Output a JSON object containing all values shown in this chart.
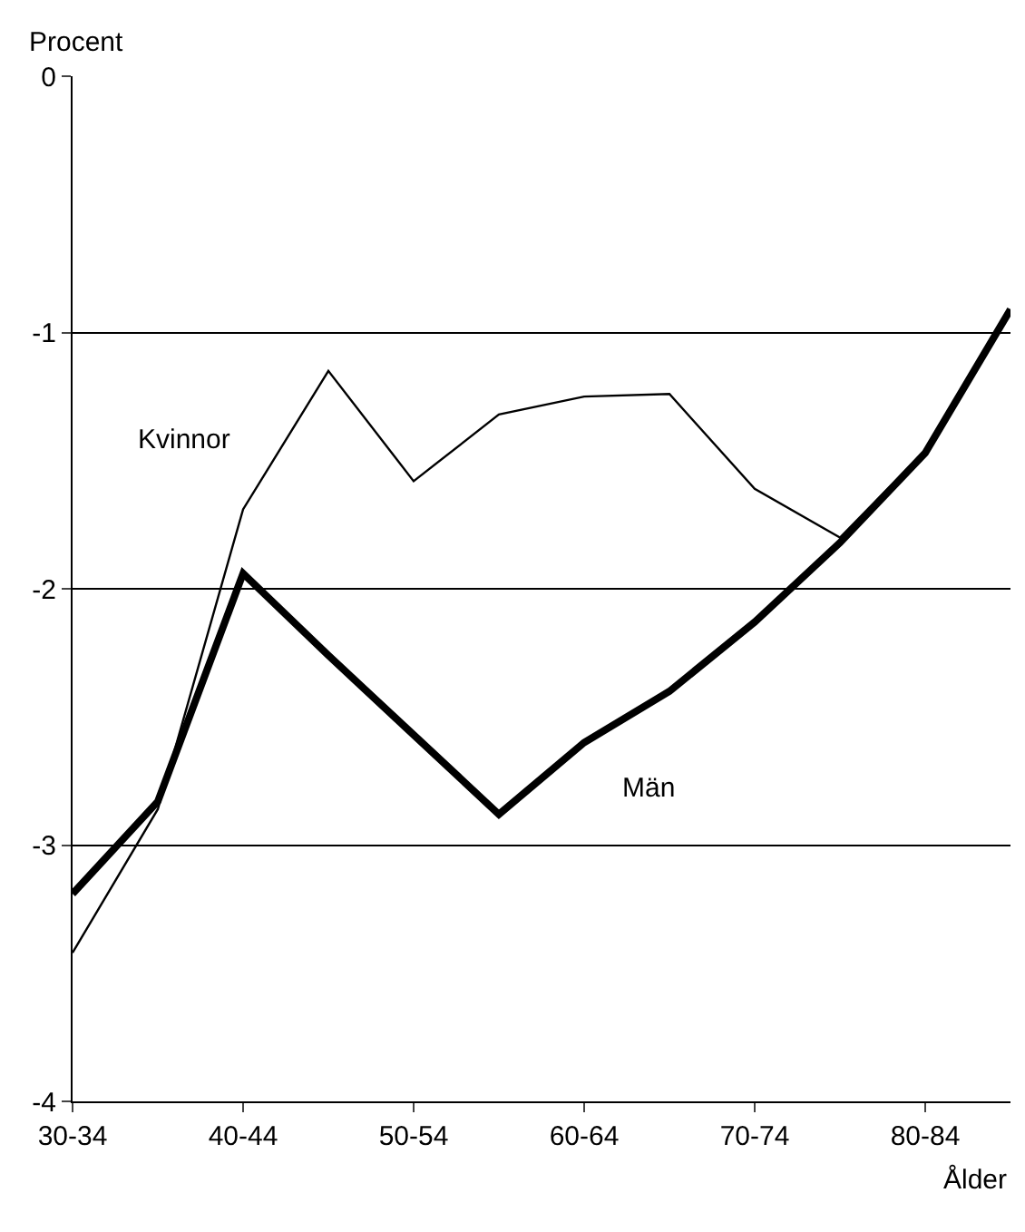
{
  "chart_data": {
    "type": "line",
    "xlabel": "Ålder",
    "ylabel": "Procent",
    "categories": [
      "30-34",
      null,
      "40-44",
      null,
      "50-54",
      null,
      "60-64",
      null,
      "70-74",
      null,
      "80-84",
      null
    ],
    "series": [
      {
        "name": "Kvinnor",
        "color": "#000000",
        "values": [
          -3.42,
          -2.86,
          -1.69,
          -1.15,
          -1.58,
          -1.32,
          -1.25,
          -1.24,
          -1.61,
          -1.8,
          -1.46,
          -0.91
        ]
      },
      {
        "name": "Män",
        "color": "#000000",
        "values": [
          -3.19,
          -2.83,
          -1.94,
          -2.26,
          -2.57,
          -2.88,
          -2.6,
          -2.4,
          -2.13,
          -1.82,
          -1.47,
          -0.91
        ]
      }
    ],
    "ylim": [
      -4,
      0
    ],
    "yticks": [
      -4,
      -3,
      -2,
      -1,
      0
    ],
    "grid": "y",
    "legend": false,
    "marker": "none",
    "line_style": "solid"
  }
}
